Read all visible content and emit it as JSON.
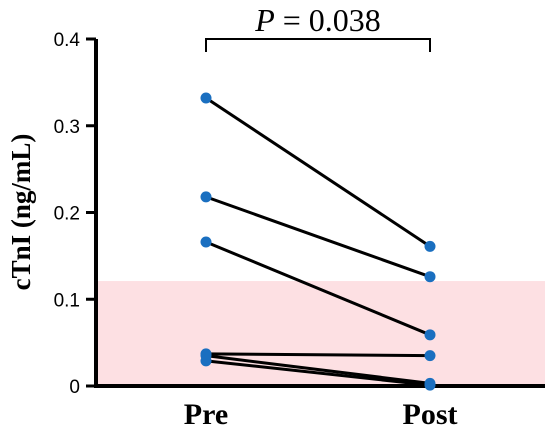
{
  "chart_data": {
    "type": "line",
    "ylabel": "cTnI (ng/mL)",
    "categories": [
      "Pre",
      "Post"
    ],
    "ylim": [
      0,
      0.4
    ],
    "yticks": [
      0,
      0.1,
      0.2,
      0.3,
      0.4
    ],
    "ytick_labels": [
      "0",
      "0.1",
      "0.2",
      "0.3",
      "0.4"
    ],
    "reference_band": {
      "y_from": 0,
      "y_to": 0.121,
      "color": "#fde0e3"
    },
    "significance": {
      "italic": "P",
      "rest": " = 0.038"
    },
    "point_color": "#1a6fc0",
    "line_color": "#000000",
    "pairs": [
      {
        "pre": 0.332,
        "post": 0.161
      },
      {
        "pre": 0.218,
        "post": 0.126
      },
      {
        "pre": 0.166,
        "post": 0.059
      },
      {
        "pre": 0.037,
        "post": 0.035
      },
      {
        "pre": 0.035,
        "post": 0.003
      },
      {
        "pre": 0.029,
        "post": 0.001
      }
    ]
  }
}
